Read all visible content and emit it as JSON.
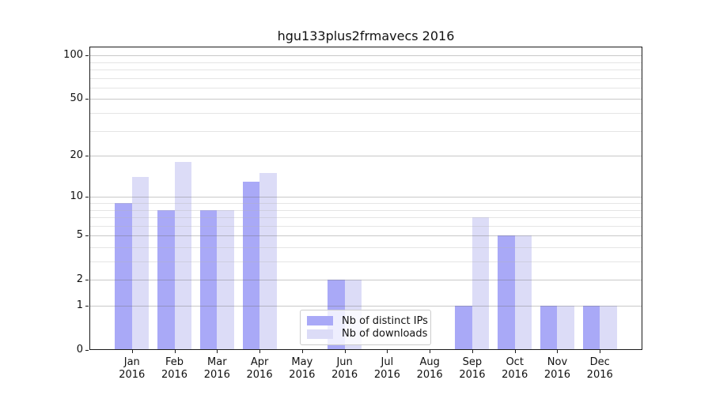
{
  "title": "hgu133plus2frmavecs 2016",
  "chart_data": {
    "type": "bar",
    "title": "hgu133plus2frmavecs 2016",
    "categories": [
      "Jan 2016",
      "Feb 2016",
      "Mar 2016",
      "Apr 2016",
      "May 2016",
      "Jun 2016",
      "Jul 2016",
      "Aug 2016",
      "Sep 2016",
      "Oct 2016",
      "Nov 2016",
      "Dec 2016"
    ],
    "x_tick_line1": [
      "Jan",
      "Feb",
      "Mar",
      "Apr",
      "May",
      "Jun",
      "Jul",
      "Aug",
      "Sep",
      "Oct",
      "Nov",
      "Dec"
    ],
    "x_tick_line2": [
      "2016",
      "2016",
      "2016",
      "2016",
      "2016",
      "2016",
      "2016",
      "2016",
      "2016",
      "2016",
      "2016",
      "2016"
    ],
    "series": [
      {
        "name": "Nb of distinct IPs",
        "color": "#a9a9f7",
        "values": [
          9,
          8,
          8,
          13,
          0,
          2,
          0,
          0,
          1,
          5,
          1,
          1
        ]
      },
      {
        "name": "Nb of downloads",
        "color": "#dcdcf7",
        "values": [
          14,
          18,
          8,
          15,
          0,
          2,
          0,
          0,
          7,
          5,
          1,
          1
        ]
      }
    ],
    "xlabel": "",
    "ylabel": "",
    "yscale": "log1p",
    "ylim": [
      0,
      115
    ],
    "yticks": [
      0,
      1,
      2,
      5,
      10,
      20,
      50,
      100
    ],
    "yticks_minor": [
      3,
      4,
      6,
      7,
      8,
      9,
      30,
      40,
      60,
      70,
      80,
      90
    ],
    "grid": true,
    "legend_position": "lower center"
  },
  "colors": {
    "bar_dark": "#a9a9f7",
    "bar_light": "#dcdcf7",
    "grid_major": "#c9c9c9",
    "grid_minor": "#e6e6e6",
    "spine": "#1a1a1a",
    "background": "#ffffff"
  }
}
